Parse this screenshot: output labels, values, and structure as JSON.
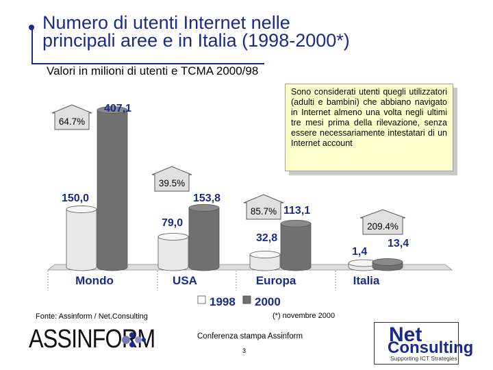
{
  "slide": {
    "title_line1": "Numero di utenti Internet nelle",
    "title_line2": "principali aree e in Italia (1998-2000*)",
    "subtitle": "Valori in milioni di utenti e TCMA 2000/98",
    "note": "Sono considerati utenti quegli utilizzatori (adulti e bambini) che abbiano navigato in Internet almeno una volta negli ultimi tre mesi prima della rilevazione, senza essere necessariamente intestatari di un Internet account",
    "source": "Fonte: Assinform / Net.Consulting",
    "footnote": "(*) novembre 2000",
    "conference": "Conferenza stampa Assinform",
    "page_number": "3",
    "logo_left": "ASSINFORM",
    "logo_right_net": "Net",
    "logo_right_consulting": "Consulting",
    "logo_right_tagline": "Supporting ICT Strategies"
  },
  "colors": {
    "title": "#1a2a8a",
    "bar_1998": "#e8e8e8",
    "bar_2000": "#707070",
    "value_label": "#1a2a8a",
    "callout_fill": "#e0e0e0"
  },
  "chart_data": {
    "type": "bar",
    "categories": [
      "Mondo",
      "USA",
      "Europa",
      "Italia"
    ],
    "series": [
      {
        "name": "1998",
        "values": [
          150.0,
          79.0,
          32.8,
          1.4
        ],
        "labels": [
          "150,0",
          "79,0",
          "32,8",
          "1,4"
        ]
      },
      {
        "name": "2000",
        "values": [
          407.1,
          153.8,
          113.1,
          13.4
        ],
        "labels": [
          "407,1",
          "153,8",
          "113,1",
          "13,4"
        ]
      }
    ],
    "growth_labels": [
      "64.7%",
      "39.5%",
      "85.7%",
      "209.4%"
    ],
    "ylim": [
      0,
      420
    ],
    "legend_position": "bottom",
    "grid": false
  }
}
